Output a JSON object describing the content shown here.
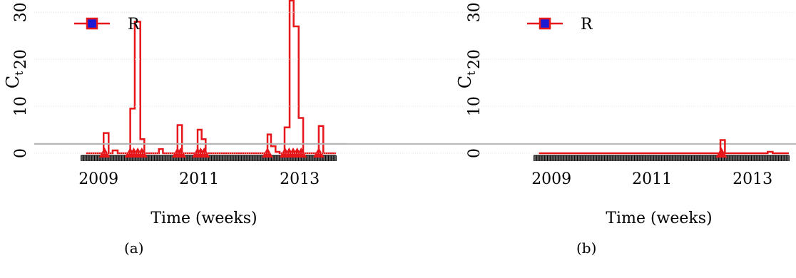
{
  "chart_data": [
    {
      "type": "line",
      "panel": "(a)",
      "xlabel": "Time (weeks)",
      "ylabel": "C",
      "ylabel_subscript": "t",
      "xlim": [
        2008.6,
        2013.75
      ],
      "ylim": [
        0,
        32
      ],
      "yticks": [
        0,
        10,
        20,
        30
      ],
      "xticks": [
        2009,
        2011,
        2013
      ],
      "threshold": 2,
      "grid": true,
      "legend": {
        "position": "top-left",
        "entries": [
          "R"
        ]
      },
      "series": [
        {
          "step_x": [
            2008.75,
            2009.1,
            2009.1,
            2009.2,
            2009.2,
            2009.28,
            2009.28,
            2009.38,
            2009.38,
            2009.63,
            2009.63,
            2009.72,
            2009.72,
            2009.83,
            2009.83,
            2009.91,
            2009.91,
            2010.2,
            2010.2,
            2010.28,
            2010.28,
            2010.57,
            2010.57,
            2010.66,
            2010.66,
            2010.97,
            2010.97,
            2011.05,
            2011.05,
            2011.13,
            2011.13,
            2012.36,
            2012.36,
            2012.43,
            2012.43,
            2012.52,
            2012.52,
            2012.6,
            2012.6,
            2012.7,
            2012.7,
            2012.8,
            2012.8,
            2012.88,
            2012.88,
            2012.98,
            2012.98,
            2013.07,
            2013.07,
            2013.38,
            2013.38,
            2013.47,
            2013.47,
            2013.72
          ],
          "step_y": [
            0,
            0,
            4.3,
            4.3,
            0,
            0,
            0.6,
            0.6,
            0,
            0,
            9.5,
            9.5,
            28,
            28,
            3,
            3,
            0,
            0,
            0.9,
            0.9,
            0,
            0,
            6,
            6,
            0,
            0,
            5,
            5,
            3,
            3,
            0,
            0,
            4,
            4,
            1.5,
            1.5,
            0.3,
            0.3,
            0,
            0,
            5.5,
            5.5,
            32.5,
            32.5,
            27,
            27,
            7.5,
            7.5,
            0,
            0,
            5.8,
            5.8,
            0,
            0
          ]
        }
      ],
      "alarms_x": [
        2009.12,
        2009.63,
        2009.7,
        2009.78,
        2009.86,
        2010.57,
        2010.63,
        2010.97,
        2011.03,
        2011.1,
        2012.36,
        2012.71,
        2012.79,
        2012.87,
        2012.95,
        2013.03,
        2013.38
      ]
    },
    {
      "type": "line",
      "panel": "(b)",
      "xlabel": "Time (weeks)",
      "ylabel": "C",
      "ylabel_subscript": "t",
      "xlim": [
        2008.6,
        2013.75
      ],
      "ylim": [
        0,
        32
      ],
      "yticks": [
        0,
        10,
        20,
        30
      ],
      "xticks": [
        2009,
        2011,
        2013
      ],
      "threshold": 2,
      "grid": true,
      "legend": {
        "position": "top-left",
        "entries": [
          "R"
        ]
      },
      "series": [
        {
          "step_x": [
            2008.75,
            2012.36,
            2012.36,
            2012.45,
            2012.45,
            2013.3,
            2013.3,
            2013.4,
            2013.4,
            2013.72
          ],
          "step_y": [
            0,
            0,
            2.8,
            2.8,
            0,
            0,
            0.3,
            0.3,
            0,
            0
          ]
        }
      ],
      "alarms_x": [
        2012.38
      ]
    }
  ]
}
